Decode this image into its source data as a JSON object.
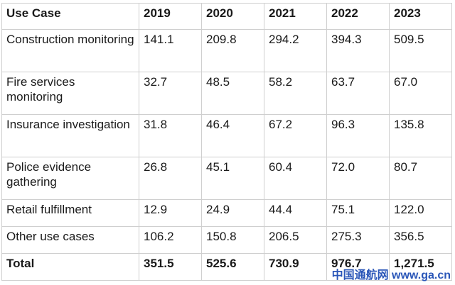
{
  "table": {
    "headers": [
      "Use Case",
      "2019",
      "2020",
      "2021",
      "2022",
      "2023"
    ],
    "rows": [
      {
        "label": "Construction monitoring",
        "values": [
          "141.1",
          "209.8",
          "294.2",
          "394.3",
          "509.5"
        ]
      },
      {
        "label": "Fire services monitoring",
        "values": [
          "32.7",
          "48.5",
          "58.2",
          "63.7",
          "67.0"
        ]
      },
      {
        "label": "Insurance investigation",
        "values": [
          "31.8",
          "46.4",
          "67.2",
          "96.3",
          "135.8"
        ]
      },
      {
        "label": "Police evidence gathering",
        "values": [
          "26.8",
          "45.1",
          "60.4",
          "72.0",
          "80.7"
        ]
      },
      {
        "label": "Retail fulfillment",
        "values": [
          "12.9",
          "24.9",
          "44.4",
          "75.1",
          "122.0"
        ]
      },
      {
        "label": "Other use cases",
        "values": [
          "106.2",
          "150.8",
          "206.5",
          "275.3",
          "356.5"
        ]
      }
    ],
    "total": {
      "label": "Total",
      "values": [
        "351.5",
        "525.6",
        "730.9",
        "976.7",
        "1,271.5"
      ]
    }
  },
  "watermark": "中国通航网 www.ga.cn"
}
